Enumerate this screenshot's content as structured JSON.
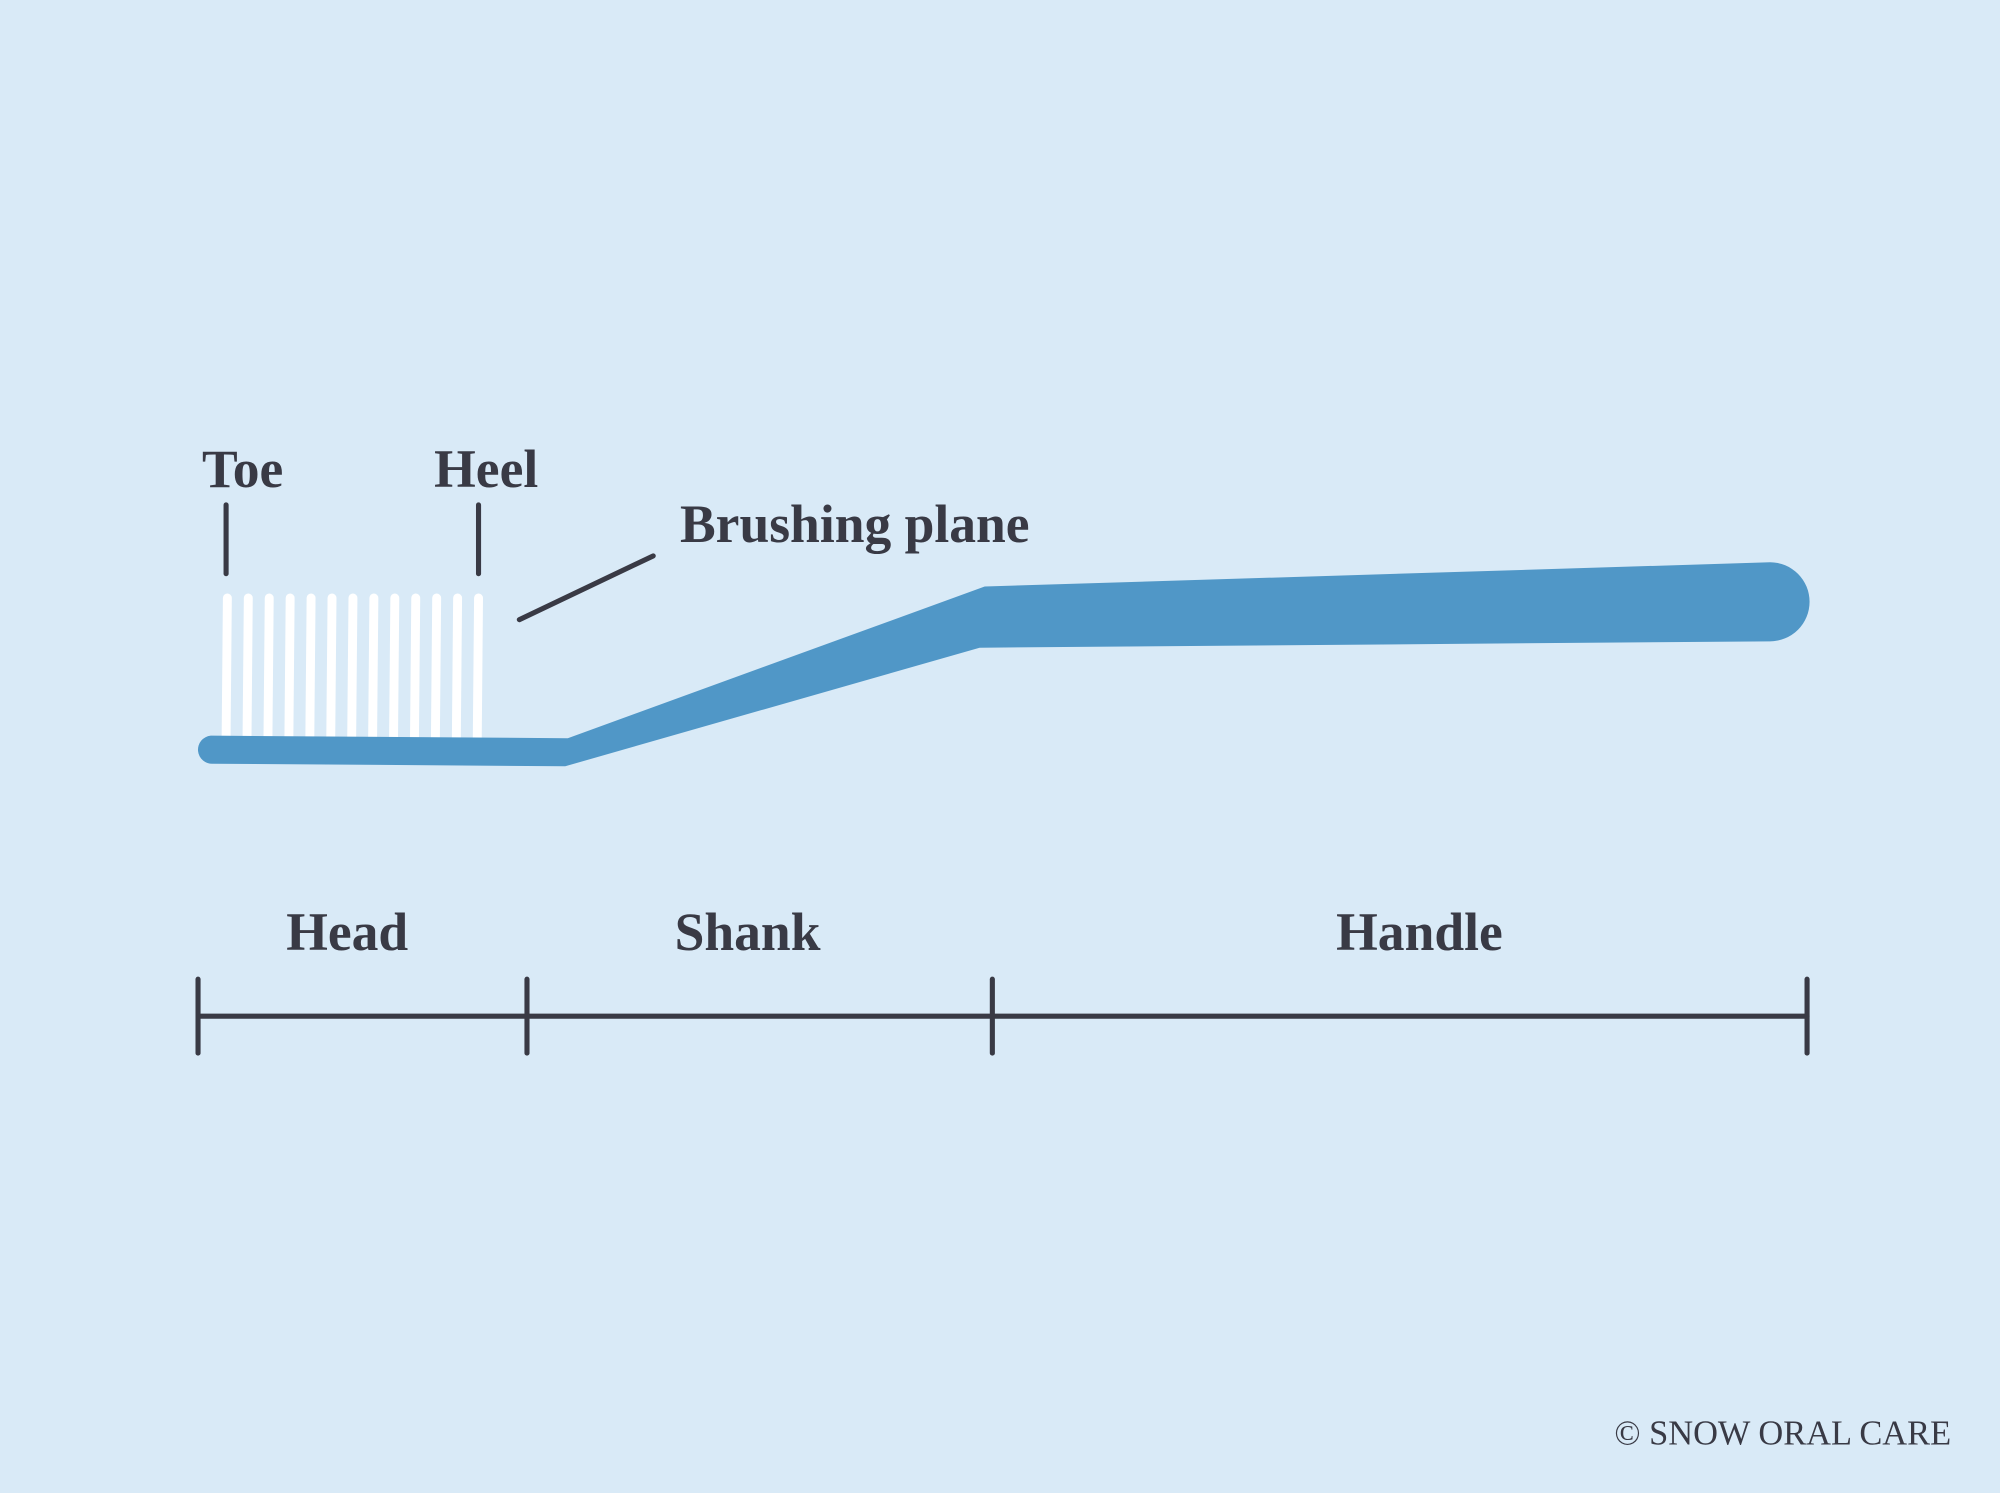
{
  "labels": {
    "toe": "Toe",
    "heel": "Heel",
    "brushing_plane": "Brushing plane"
  },
  "sections": {
    "head": "Head",
    "shank": "Shank",
    "handle": "Handle"
  },
  "footer": {
    "copyright": "© SNOW ORAL CARE"
  }
}
